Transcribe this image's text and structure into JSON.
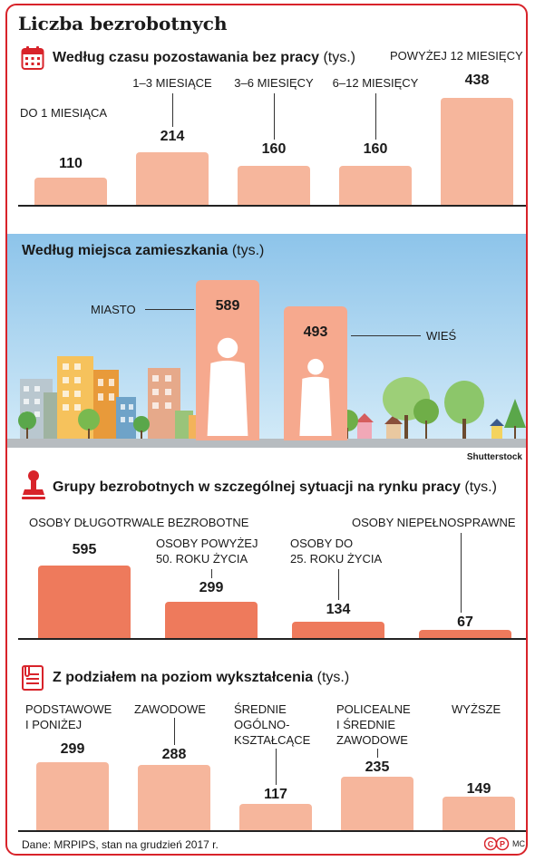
{
  "title": "Liczba bezrobotnych",
  "sections": {
    "s1": {
      "title": "Według czasu pozostawania bez pracy",
      "unit": "(tys.)",
      "icon": "calendar-icon"
    },
    "s2": {
      "title": "Według miejsca zamieszkania",
      "unit": "(tys.)"
    },
    "s3": {
      "title": "Grupy bezrobotnych w szczególnej sytuacji na rynku pracy",
      "unit": "(tys.)",
      "icon": "stamp-icon"
    },
    "s4": {
      "title": "Z podziałem na poziom wykształcenia",
      "unit": "(tys.)",
      "icon": "document-icon"
    }
  },
  "credit": "Shutterstock",
  "footer": {
    "source": "Dane: MRPIPS, stan na grudzień 2017 r.",
    "copyright": "©P",
    "author": "MC"
  },
  "colors": {
    "frame": "#d8232a",
    "bar_light": "#f6b69c",
    "bar_dark": "#ee7a5c",
    "sky": "#a9d3ee"
  },
  "chart_data": [
    {
      "type": "bar",
      "categories": [
        "DO 1 MIESIĄCA",
        "1–3 MIESIĄCE",
        "3–6 MIESIĘCY",
        "6–12 MIESIĘCY",
        "POWYŻEJ 12 MIESIĘCY"
      ],
      "values": [
        110,
        214,
        160,
        160,
        438
      ],
      "title": "Według czasu pozostawania bez pracy (tys.)"
    },
    {
      "type": "bar",
      "categories": [
        "MIASTO",
        "WIEŚ"
      ],
      "values": [
        589,
        493
      ],
      "title": "Według miejsca zamieszkania (tys.)"
    },
    {
      "type": "bar",
      "categories": [
        "OSOBY DŁUGOTRWALE BEZROBOTNE",
        "OSOBY POWYŻEJ 50. ROKU ŻYCIA",
        "OSOBY DO 25. ROKU ŻYCIA",
        "OSOBY NIEPEŁNOSPRAWNE"
      ],
      "values": [
        595,
        299,
        134,
        67
      ],
      "title": "Grupy bezrobotnych w szczególnej sytuacji na rynku pracy (tys.)"
    },
    {
      "type": "bar",
      "categories": [
        "PODSTAWOWE I PONIŻEJ",
        "ZAWODOWE",
        "ŚREDNIE OGÓLNO-KSZTAŁCĄCE",
        "POLICEALNE I ŚREDNIE ZAWODOWE",
        "WYŻSZE"
      ],
      "values": [
        299,
        288,
        117,
        235,
        149
      ],
      "title": "Z podziałem na poziom wykształcenia (tys.)"
    }
  ]
}
